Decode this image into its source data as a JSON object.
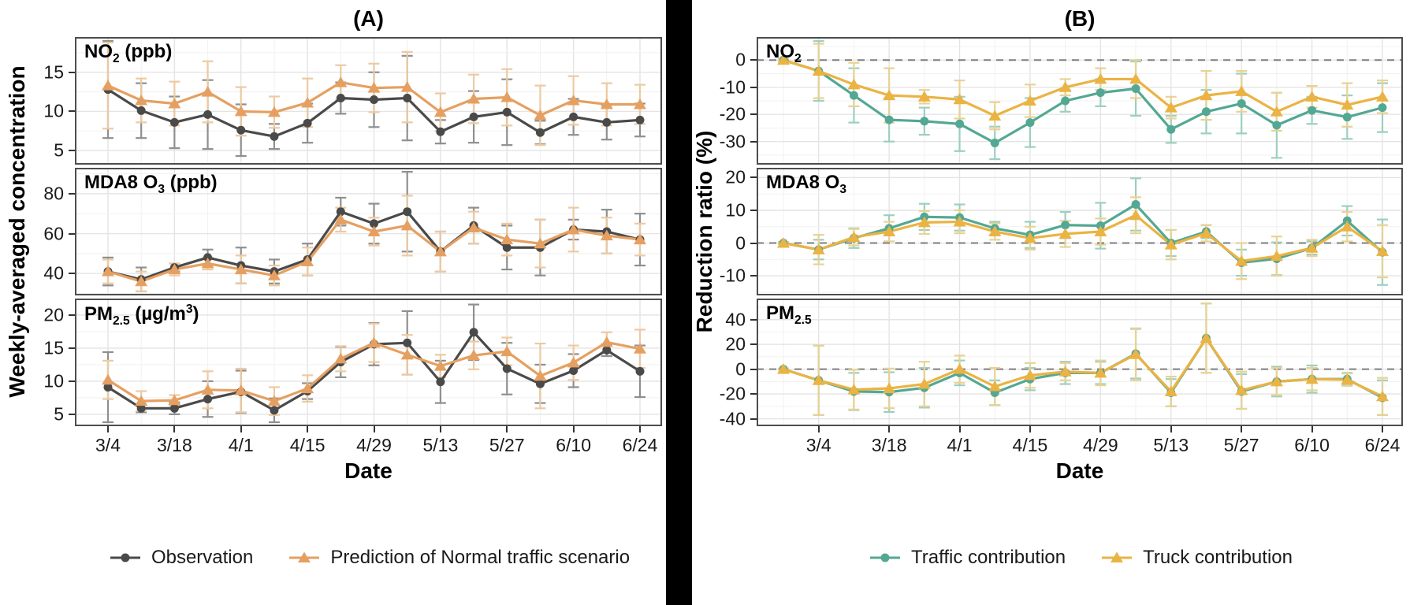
{
  "chart_data": {
    "type": "line",
    "panels": [
      {
        "title": "(A)",
        "ylabel": "Weekly-averaged concentration",
        "xlabel": "Date",
        "dates": [
          "3/4",
          "3/11",
          "3/18",
          "3/25",
          "4/1",
          "4/8",
          "4/15",
          "4/22",
          "4/29",
          "5/6",
          "5/13",
          "5/20",
          "5/27",
          "6/3",
          "6/10",
          "6/17",
          "6/24"
        ],
        "x_tick_labels": [
          "3/4",
          "3/18",
          "4/1",
          "4/15",
          "4/29",
          "5/13",
          "5/27",
          "6/10",
          "6/24"
        ],
        "x_tick_indices": [
          0,
          2,
          4,
          6,
          8,
          10,
          12,
          14,
          16
        ],
        "series_defs": [
          {
            "label": "Observation",
            "color": "#4a4a4a",
            "err_color": "#8f8f8f",
            "marker": "circle"
          },
          {
            "label": "Prediction of Normal traffic scenario",
            "color": "#e5a061",
            "err_color": "#eccaa2",
            "marker": "triangle"
          }
        ],
        "subplots": [
          {
            "label_segments": [
              [
                "t",
                "NO"
              ],
              [
                "sub",
                "2"
              ],
              [
                "t",
                " (ppb)"
              ]
            ],
            "yticks": [
              5,
              10,
              15
            ],
            "ylim": [
              3.2,
              19.5
            ],
            "zero_line": false,
            "series": [
              {
                "values": [
                  12.8,
                  10.1,
                  8.6,
                  9.6,
                  7.6,
                  6.8,
                  8.5,
                  11.7,
                  11.5,
                  11.7,
                  7.4,
                  9.3,
                  9.9,
                  7.3,
                  9.3,
                  8.6,
                  8.9
                ],
                "err": [
                  6.2,
                  3.5,
                  3.3,
                  4.4,
                  3.3,
                  1.6,
                  2.5,
                  2.0,
                  3.5,
                  5.4,
                  1.5,
                  3.3,
                  4.2,
                  1.5,
                  2.3,
                  2.2,
                  2.1
                ]
              },
              {
                "values": [
                  13.3,
                  11.4,
                  11.0,
                  12.5,
                  10.0,
                  9.9,
                  11.1,
                  13.7,
                  13.0,
                  13.1,
                  9.9,
                  11.6,
                  11.8,
                  9.5,
                  11.4,
                  10.9,
                  10.9
                ],
                "err": [
                  5.5,
                  2.8,
                  2.8,
                  3.9,
                  3.1,
                  2.0,
                  3.1,
                  2.2,
                  3.1,
                  4.5,
                  2.4,
                  3.1,
                  3.6,
                  3.8,
                  3.1,
                  2.7,
                  2.5
                ]
              }
            ]
          },
          {
            "label_segments": [
              [
                "t",
                "MDA8 O"
              ],
              [
                "sub",
                "3"
              ],
              [
                "t",
                " (ppb)"
              ]
            ],
            "yticks": [
              40,
              60,
              80
            ],
            "ylim": [
              29,
              93
            ],
            "zero_line": false,
            "series": [
              {
                "values": [
                  41,
                  37,
                  43,
                  48,
                  44,
                  41,
                  47,
                  71,
                  65,
                  71,
                  51,
                  64,
                  53,
                  53,
                  62,
                  61,
                  57
                ],
                "err": [
                  7,
                  6,
                  2,
                  4,
                  9,
                  6,
                  8,
                  7,
                  10,
                  20,
                  10,
                  9,
                  11,
                  14,
                  5,
                  11,
                  13
                ]
              },
              {
                "values": [
                  41,
                  36,
                  42,
                  45,
                  42,
                  39,
                  46,
                  67,
                  61,
                  64,
                  51,
                  63,
                  57,
                  55,
                  62,
                  59,
                  57
                ],
                "err": [
                  6,
                  5,
                  3,
                  3,
                  7,
                  5,
                  7,
                  6,
                  7,
                  15,
                  10,
                  8,
                  8,
                  12,
                  11,
                  9,
                  8
                ]
              }
            ]
          },
          {
            "label_segments": [
              [
                "t",
                "PM"
              ],
              [
                "sub",
                "2.5"
              ],
              [
                "t",
                " (µg/m"
              ],
              [
                "sup",
                "3"
              ],
              [
                "t",
                ")"
              ]
            ],
            "yticks": [
              5,
              10,
              15,
              20
            ],
            "ylim": [
              3.2,
              22.5
            ],
            "zero_line": false,
            "series": [
              {
                "values": [
                  9.1,
                  5.9,
                  5.9,
                  7.3,
                  8.4,
                  5.6,
                  8.5,
                  12.9,
                  15.6,
                  15.8,
                  9.9,
                  17.4,
                  11.9,
                  9.6,
                  11.6,
                  14.7,
                  11.5
                ],
                "err": [
                  5.3,
                  0.6,
                  0.9,
                  2.7,
                  3.2,
                  1.8,
                  1.2,
                  2.3,
                  3.2,
                  4.8,
                  3.2,
                  4.2,
                  3.9,
                  2.9,
                  2.5,
                  0.9,
                  3.9
                ]
              },
              {
                "values": [
                  10.2,
                  7.0,
                  7.1,
                  8.7,
                  8.6,
                  7.0,
                  8.9,
                  13.4,
                  15.8,
                  14.0,
                  12.3,
                  13.9,
                  14.5,
                  10.8,
                  12.8,
                  15.9,
                  14.9
                ],
                "err": [
                  2.9,
                  1.5,
                  0.8,
                  2.8,
                  3.3,
                  2.1,
                  2.0,
                  1.9,
                  2.9,
                  3.0,
                  1.7,
                  2.1,
                  2.1,
                  4.9,
                  2.6,
                  1.5,
                  2.9
                ]
              }
            ]
          }
        ]
      },
      {
        "title": "(B)",
        "ylabel": "Reduction ratio (%)",
        "xlabel": "Date",
        "dates": [
          "2/25",
          "3/4",
          "3/11",
          "3/18",
          "3/25",
          "4/1",
          "4/8",
          "4/15",
          "4/22",
          "4/29",
          "5/6",
          "5/13",
          "5/20",
          "5/27",
          "6/3",
          "6/10",
          "6/17",
          "6/24"
        ],
        "x_tick_labels": [
          "3/4",
          "3/18",
          "4/1",
          "4/15",
          "4/29",
          "5/13",
          "5/27",
          "6/10",
          "6/24"
        ],
        "x_tick_indices": [
          1,
          3,
          5,
          7,
          9,
          11,
          13,
          15,
          17
        ],
        "series_defs": [
          {
            "label": "Traffic contribution",
            "color": "#53a893",
            "err_color": "#9ccfc0",
            "marker": "circle"
          },
          {
            "label": "Truck contribution",
            "color": "#eab343",
            "err_color": "#e8d294",
            "marker": "triangle"
          }
        ],
        "subplots": [
          {
            "label_segments": [
              [
                "t",
                "NO"
              ],
              [
                "sub",
                "2"
              ]
            ],
            "yticks": [
              0,
              -10,
              -20,
              -30
            ],
            "ylim": [
              -38.5,
              8.5
            ],
            "zero_line": true,
            "series": [
              {
                "values": [
                  0,
                  -4,
                  -13,
                  -22,
                  -22.5,
                  -23.5,
                  -30.5,
                  -23,
                  -15,
                  -12,
                  -10.5,
                  -25.5,
                  -19,
                  -16,
                  -24,
                  -18.5,
                  -21,
                  -17.5
                ],
                "err": [
                  0.5,
                  11,
                  10,
                  8,
                  5,
                  10,
                  6,
                  9,
                  4,
                  5,
                  10,
                  5,
                  8,
                  11,
                  12,
                  5,
                  8,
                  9
                ]
              },
              {
                "values": [
                  0,
                  -4,
                  -9,
                  -13,
                  -13.5,
                  -14.5,
                  -20.5,
                  -15,
                  -10,
                  -7,
                  -7,
                  -17.5,
                  -13,
                  -11.5,
                  -19,
                  -13.5,
                  -16.5,
                  -13.5
                ],
                "err": [
                  0.5,
                  10,
                  8,
                  10,
                  2.5,
                  7,
                  5,
                  6,
                  3,
                  4,
                  7,
                  4,
                  9,
                  7.5,
                  7,
                  4,
                  8,
                  6
                ]
              }
            ]
          },
          {
            "label_segments": [
              [
                "t",
                "MDA8 O"
              ],
              [
                "sub",
                "3"
              ]
            ],
            "yticks": [
              20,
              10,
              0,
              -10
            ],
            "ylim": [
              -16,
              23
            ],
            "zero_line": true,
            "series": [
              {
                "values": [
                  0,
                  -2,
                  1.5,
                  4.5,
                  8,
                  7.8,
                  4.5,
                  2.5,
                  5.5,
                  5.3,
                  11.8,
                  0,
                  3.5,
                  -6,
                  -4.8,
                  -1.5,
                  6.8,
                  -2.8
                ],
                "err": [
                  0.3,
                  3,
                  3,
                  4,
                  4,
                  4,
                  2,
                  4,
                  4,
                  7,
                  8,
                  4,
                  2,
                  4,
                  5,
                  2,
                  4.5,
                  10
                ]
              },
              {
                "values": [
                  0,
                  -2,
                  1.8,
                  3.5,
                  6.3,
                  6.5,
                  3.5,
                  1.5,
                  2.8,
                  3.5,
                  8.5,
                  -0.5,
                  3,
                  -5.5,
                  -4,
                  -1.5,
                  5,
                  -2.5
                ],
                "err": [
                  0.3,
                  4.5,
                  2.5,
                  3,
                  3.5,
                  3.5,
                  2.5,
                  3.5,
                  4,
                  4,
                  5.5,
                  4.5,
                  2.5,
                  5.5,
                  6,
                  2.5,
                  4.5,
                  8
                ]
              }
            ]
          },
          {
            "label_segments": [
              [
                "t",
                "PM"
              ],
              [
                "sub",
                "2.5"
              ]
            ],
            "yticks": [
              40,
              20,
              0,
              -20,
              -40
            ],
            "ylim": [
              -46,
              57
            ],
            "zero_line": true,
            "series": [
              {
                "values": [
                  0,
                  -9,
                  -18,
                  -18.5,
                  -15,
                  -3,
                  -19,
                  -8,
                  -3,
                  -3,
                  12.5,
                  -19,
                  25,
                  -18,
                  -10,
                  -8,
                  -8,
                  -23
                ],
                "err": [
                  0.5,
                  28,
                  15,
                  16,
                  16,
                  10,
                  10,
                  9,
                  9,
                  9,
                  20,
                  11,
                  28,
                  14,
                  12,
                  11,
                  5,
                  14
                ]
              },
              {
                "values": [
                  0,
                  -9,
                  -16.5,
                  -15.5,
                  -12,
                  0,
                  -14,
                  -5,
                  -2,
                  -3,
                  12,
                  -18,
                  25,
                  -17,
                  -10,
                  -8,
                  -8.5,
                  -22
                ],
                "err": [
                  0.5,
                  28,
                  16,
                  16,
                  18,
                  11,
                  15,
                  10,
                  7,
                  10,
                  21,
                  12,
                  28,
                  15,
                  11,
                  9,
                  5,
                  15
                ]
              }
            ]
          }
        ]
      }
    ]
  },
  "style": {
    "grid_major_color": "#e4e4e4",
    "grid_minor_color": "#f1f1f1",
    "border_color": "#4d4d4d",
    "zero_line_color": "#7d7d7d",
    "divider_color": "#000000"
  }
}
